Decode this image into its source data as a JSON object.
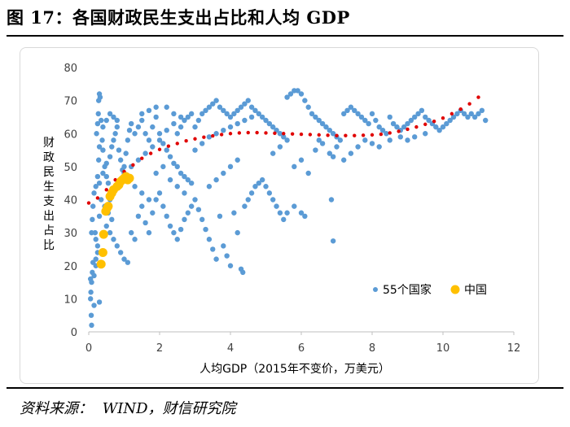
{
  "figure": {
    "title": "图 17：各国财政民生支出占比和人均 GDP",
    "source_label": "资料来源：",
    "source_value": "WIND，财信研究院"
  },
  "colors": {
    "countries": "#5B9BD5",
    "china": "#FFC000",
    "trend": "#E00000",
    "axis": "#bfbfbf"
  },
  "chart_data": {
    "type": "scatter",
    "title": "",
    "xlabel": "人均GDP（2015年不变价，万美元）",
    "ylabel": "财政民生支出占比",
    "xlim": [
      0,
      12
    ],
    "ylim": [
      0,
      80
    ],
    "xticks": [
      "0",
      "2",
      "4",
      "6",
      "8",
      "10",
      "12"
    ],
    "yticks": [
      "0",
      "10",
      "20",
      "30",
      "40",
      "50",
      "60",
      "70",
      "80"
    ],
    "legend": [
      "55个国家",
      "中国"
    ],
    "legend_position": "bottom-right",
    "series": [
      {
        "name": "55个国家",
        "points": [
          [
            0.05,
            10
          ],
          [
            0.06,
            12
          ],
          [
            0.08,
            15
          ],
          [
            0.1,
            18
          ],
          [
            0.12,
            21
          ],
          [
            0.15,
            17
          ],
          [
            0.2,
            22
          ],
          [
            0.25,
            24
          ],
          [
            0.3,
            9
          ],
          [
            0.18,
            30
          ],
          [
            0.08,
            30
          ],
          [
            0.1,
            34
          ],
          [
            0.12,
            38
          ],
          [
            0.15,
            42
          ],
          [
            0.2,
            44
          ],
          [
            0.25,
            47
          ],
          [
            0.28,
            52
          ],
          [
            0.3,
            56
          ],
          [
            0.22,
            60
          ],
          [
            0.25,
            63
          ],
          [
            0.27,
            66
          ],
          [
            0.28,
            70
          ],
          [
            0.3,
            72
          ],
          [
            0.32,
            71
          ],
          [
            0.35,
            64
          ],
          [
            0.38,
            58
          ],
          [
            0.4,
            55
          ],
          [
            0.45,
            50
          ],
          [
            0.5,
            47
          ],
          [
            0.55,
            45
          ],
          [
            0.6,
            53
          ],
          [
            0.65,
            56
          ],
          [
            0.7,
            58
          ],
          [
            0.75,
            60
          ],
          [
            0.8,
            62
          ],
          [
            0.85,
            55
          ],
          [
            0.9,
            52
          ],
          [
            0.95,
            49
          ],
          [
            1.0,
            50
          ],
          [
            1.05,
            54
          ],
          [
            1.1,
            58
          ],
          [
            1.15,
            61
          ],
          [
            1.2,
            63
          ],
          [
            1.3,
            60
          ],
          [
            1.4,
            62
          ],
          [
            1.5,
            64
          ],
          [
            1.6,
            60
          ],
          [
            1.7,
            58
          ],
          [
            1.8,
            62
          ],
          [
            1.9,
            65
          ],
          [
            2.0,
            60
          ],
          [
            2.1,
            57
          ],
          [
            2.2,
            55
          ],
          [
            2.3,
            53
          ],
          [
            2.4,
            51
          ],
          [
            2.5,
            50
          ],
          [
            2.6,
            48
          ],
          [
            2.7,
            47
          ],
          [
            2.8,
            46
          ],
          [
            2.9,
            45
          ],
          [
            0.5,
            32
          ],
          [
            0.6,
            30
          ],
          [
            0.7,
            28
          ],
          [
            0.8,
            26
          ],
          [
            0.9,
            24
          ],
          [
            1.0,
            22
          ],
          [
            1.1,
            21
          ],
          [
            1.2,
            30
          ],
          [
            1.3,
            28
          ],
          [
            1.4,
            35
          ],
          [
            1.5,
            38
          ],
          [
            1.6,
            33
          ],
          [
            1.7,
            30
          ],
          [
            1.8,
            36
          ],
          [
            1.9,
            40
          ],
          [
            2.0,
            42
          ],
          [
            2.1,
            38
          ],
          [
            2.2,
            35
          ],
          [
            2.3,
            32
          ],
          [
            2.4,
            30
          ],
          [
            2.5,
            28
          ],
          [
            2.6,
            31
          ],
          [
            2.7,
            34
          ],
          [
            2.8,
            36
          ],
          [
            2.9,
            38
          ],
          [
            3.0,
            40
          ],
          [
            3.1,
            37
          ],
          [
            3.2,
            34
          ],
          [
            3.3,
            31
          ],
          [
            3.4,
            28
          ],
          [
            3.5,
            25
          ],
          [
            3.6,
            22
          ],
          [
            3.7,
            35
          ],
          [
            3.8,
            26
          ],
          [
            3.9,
            23
          ],
          [
            4.0,
            20
          ],
          [
            4.1,
            36
          ],
          [
            4.2,
            30
          ],
          [
            4.3,
            19
          ],
          [
            4.35,
            18
          ],
          [
            4.4,
            38
          ],
          [
            4.5,
            40
          ],
          [
            4.6,
            42
          ],
          [
            4.7,
            44
          ],
          [
            4.8,
            45
          ],
          [
            4.9,
            46
          ],
          [
            5.0,
            44
          ],
          [
            5.1,
            42
          ],
          [
            5.2,
            40
          ],
          [
            5.3,
            38
          ],
          [
            5.4,
            36
          ],
          [
            5.5,
            34
          ],
          [
            5.6,
            36
          ],
          [
            5.8,
            38
          ],
          [
            6.0,
            36
          ],
          [
            6.1,
            35
          ],
          [
            6.85,
            40
          ],
          [
            6.9,
            27.5
          ],
          [
            2.5,
            60
          ],
          [
            2.6,
            62
          ],
          [
            2.7,
            64
          ],
          [
            2.8,
            65
          ],
          [
            2.9,
            66
          ],
          [
            3.0,
            62
          ],
          [
            3.1,
            64
          ],
          [
            3.2,
            66
          ],
          [
            3.3,
            67
          ],
          [
            3.4,
            68
          ],
          [
            3.5,
            69
          ],
          [
            3.6,
            70
          ],
          [
            3.7,
            68
          ],
          [
            3.8,
            67
          ],
          [
            3.9,
            66
          ],
          [
            4.0,
            65
          ],
          [
            4.1,
            66
          ],
          [
            4.2,
            67
          ],
          [
            4.3,
            68
          ],
          [
            4.4,
            69
          ],
          [
            4.5,
            70
          ],
          [
            4.6,
            68
          ],
          [
            4.7,
            67
          ],
          [
            4.8,
            66
          ],
          [
            4.9,
            65
          ],
          [
            5.0,
            64
          ],
          [
            5.1,
            63
          ],
          [
            5.2,
            62
          ],
          [
            5.3,
            61
          ],
          [
            5.4,
            60
          ],
          [
            5.5,
            59
          ],
          [
            5.6,
            71
          ],
          [
            5.7,
            72
          ],
          [
            5.8,
            73
          ],
          [
            5.9,
            73
          ],
          [
            6.0,
            72
          ],
          [
            6.1,
            70
          ],
          [
            6.2,
            68
          ],
          [
            6.3,
            66
          ],
          [
            6.4,
            65
          ],
          [
            6.5,
            64
          ],
          [
            6.6,
            63
          ],
          [
            6.7,
            62
          ],
          [
            6.8,
            61
          ],
          [
            6.9,
            60
          ],
          [
            7.0,
            59
          ],
          [
            7.1,
            58
          ],
          [
            7.2,
            66
          ],
          [
            7.3,
            67
          ],
          [
            7.4,
            68
          ],
          [
            7.5,
            67
          ],
          [
            7.6,
            66
          ],
          [
            7.7,
            65
          ],
          [
            7.8,
            64
          ],
          [
            7.9,
            63
          ],
          [
            8.0,
            66
          ],
          [
            8.1,
            64
          ],
          [
            8.2,
            62
          ],
          [
            8.3,
            61
          ],
          [
            8.4,
            60
          ],
          [
            8.5,
            65
          ],
          [
            8.6,
            63
          ],
          [
            8.7,
            62
          ],
          [
            8.8,
            61
          ],
          [
            8.9,
            62
          ],
          [
            9.0,
            63
          ],
          [
            9.1,
            64
          ],
          [
            9.2,
            65
          ],
          [
            9.3,
            66
          ],
          [
            9.4,
            67
          ],
          [
            9.5,
            65
          ],
          [
            9.6,
            64
          ],
          [
            9.7,
            63
          ],
          [
            9.8,
            62
          ],
          [
            9.9,
            61
          ],
          [
            10.0,
            62
          ],
          [
            10.1,
            63
          ],
          [
            10.2,
            64
          ],
          [
            10.3,
            65
          ],
          [
            10.4,
            66
          ],
          [
            10.5,
            67
          ],
          [
            10.6,
            66
          ],
          [
            10.7,
            65
          ],
          [
            10.8,
            66
          ],
          [
            10.9,
            65
          ],
          [
            11.0,
            66
          ],
          [
            11.1,
            67
          ],
          [
            11.2,
            64
          ],
          [
            6.5,
            58
          ],
          [
            6.6,
            57
          ],
          [
            6.4,
            55
          ],
          [
            6.8,
            54
          ],
          [
            6.9,
            53
          ],
          [
            7.0,
            56
          ],
          [
            7.2,
            52
          ],
          [
            7.4,
            54
          ],
          [
            7.6,
            56
          ],
          [
            7.8,
            58
          ],
          [
            8.0,
            57
          ],
          [
            8.2,
            56
          ],
          [
            8.5,
            58
          ],
          [
            8.8,
            59
          ],
          [
            9.0,
            58
          ],
          [
            9.2,
            59
          ],
          [
            9.5,
            60
          ],
          [
            0.05,
            16
          ],
          [
            0.07,
            5
          ],
          [
            0.08,
            2
          ],
          [
            0.15,
            8
          ],
          [
            0.2,
            20
          ],
          [
            0.6,
            40
          ],
          [
            0.7,
            42
          ],
          [
            0.8,
            44
          ],
          [
            0.9,
            46
          ],
          [
            1.0,
            48
          ],
          [
            1.2,
            50
          ],
          [
            1.4,
            52
          ],
          [
            1.6,
            54
          ],
          [
            1.8,
            56
          ],
          [
            2.0,
            58
          ],
          [
            2.2,
            61
          ],
          [
            2.4,
            63
          ],
          [
            2.6,
            65
          ],
          [
            3.0,
            55
          ],
          [
            3.2,
            57
          ],
          [
            3.4,
            59
          ],
          [
            3.6,
            60
          ],
          [
            3.8,
            61
          ],
          [
            4.0,
            62
          ],
          [
            4.2,
            63
          ],
          [
            4.4,
            64
          ],
          [
            4.6,
            65
          ],
          [
            1.5,
            66
          ],
          [
            1.7,
            67
          ],
          [
            1.9,
            68
          ],
          [
            2.2,
            68
          ],
          [
            2.4,
            66
          ],
          [
            0.4,
            62
          ],
          [
            0.5,
            64
          ],
          [
            0.6,
            66
          ],
          [
            0.7,
            65
          ],
          [
            0.8,
            64
          ],
          [
            1.1,
            46
          ],
          [
            1.3,
            44
          ],
          [
            1.5,
            42
          ],
          [
            1.7,
            40
          ],
          [
            1.9,
            48
          ],
          [
            2.1,
            50
          ],
          [
            2.3,
            46
          ],
          [
            2.5,
            44
          ],
          [
            2.7,
            42
          ],
          [
            3.6,
            46
          ],
          [
            3.8,
            48
          ],
          [
            4.0,
            50
          ],
          [
            4.2,
            52
          ],
          [
            5.2,
            54
          ],
          [
            5.4,
            56
          ],
          [
            5.6,
            58
          ],
          [
            5.8,
            50
          ],
          [
            6.0,
            52
          ],
          [
            6.2,
            48
          ],
          [
            3.4,
            44
          ],
          [
            0.35,
            40
          ],
          [
            0.45,
            38
          ],
          [
            0.55,
            36
          ],
          [
            0.65,
            34
          ],
          [
            0.3,
            45
          ],
          [
            0.4,
            48
          ],
          [
            0.5,
            51
          ],
          [
            0.3,
            35
          ],
          [
            0.2,
            28
          ],
          [
            0.25,
            26
          ]
        ]
      },
      {
        "name": "中国",
        "points": [
          [
            0.35,
            20.5
          ],
          [
            0.4,
            24
          ],
          [
            0.42,
            29.5
          ],
          [
            0.48,
            36.5
          ],
          [
            0.52,
            37.5
          ],
          [
            0.55,
            38
          ],
          [
            0.6,
            41
          ],
          [
            0.65,
            42
          ],
          [
            0.7,
            43
          ],
          [
            0.8,
            44
          ],
          [
            0.85,
            44.5
          ],
          [
            0.9,
            45.5
          ],
          [
            0.95,
            46
          ],
          [
            1.0,
            46.5
          ],
          [
            1.05,
            47
          ],
          [
            1.1,
            46
          ],
          [
            1.15,
            46.5
          ]
        ]
      },
      {
        "name": "trend",
        "x": [
          0,
          0.25,
          0.5,
          0.75,
          1.0,
          1.25,
          1.5,
          1.75,
          2.0,
          2.25,
          2.5,
          2.75,
          3.0,
          3.25,
          3.5,
          3.75,
          4.0,
          4.25,
          4.5,
          4.75,
          5.0,
          5.25,
          5.5,
          5.75,
          6.0,
          6.25,
          6.5,
          6.75,
          7.0,
          7.25,
          7.5,
          7.75,
          8.0,
          8.25,
          8.5,
          8.75,
          9.0,
          9.25,
          9.5,
          9.75,
          10.0,
          10.25,
          10.5,
          10.75,
          11.0
        ],
        "y": [
          39,
          40.5,
          43,
          46,
          48.5,
          50.5,
          52.5,
          54,
          55.2,
          56.2,
          57,
          57.8,
          58.4,
          58.9,
          59.3,
          59.7,
          60,
          60.2,
          60.3,
          60.3,
          60.2,
          60.1,
          60,
          59.9,
          59.8,
          59.7,
          59.6,
          59.5,
          59.4,
          59.4,
          59.4,
          59.5,
          59.6,
          59.8,
          60.2,
          60.7,
          61.3,
          62,
          62.8,
          63.7,
          64.7,
          66,
          67.4,
          69,
          71
        ]
      }
    ]
  }
}
